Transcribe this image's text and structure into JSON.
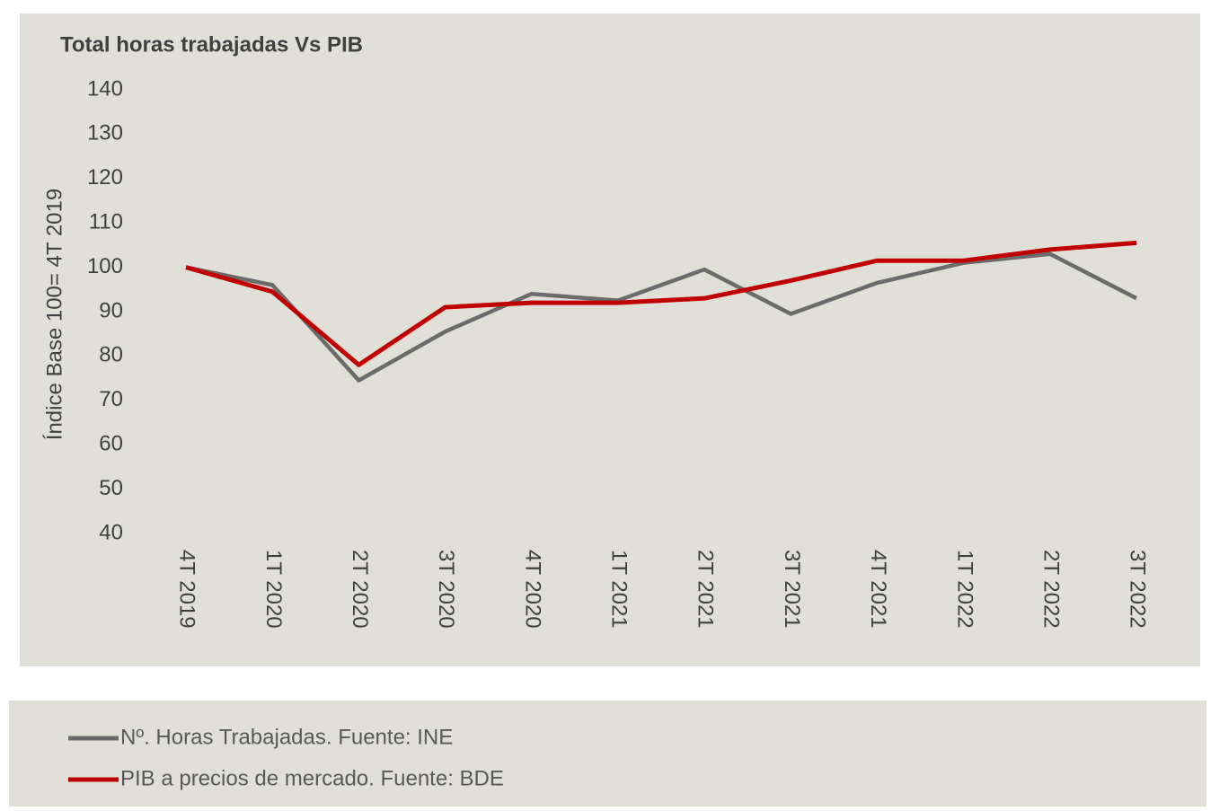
{
  "chart_data": {
    "type": "line",
    "title": "Total horas trabajadas Vs PIB",
    "y_label": "Índice Base 100= 4T 2019",
    "categories": [
      "4T 2019",
      "1T 2020",
      "2T 2020",
      "3T 2020",
      "4T 2020",
      "1T 2021",
      "2T 2021",
      "3T 2021",
      "4T 2021",
      "1T 2022",
      "2T 2022",
      "3T 2022"
    ],
    "series": [
      {
        "name": "Nº. Horas Trabajadas. Fuente: INE",
        "color": "#6b6b6b",
        "values": [
          100,
          96,
          74.5,
          85.5,
          94,
          92.5,
          99.5,
          89.5,
          96.5,
          101,
          103,
          93
        ]
      },
      {
        "name": "PIB a precios de mercado. Fuente: BDE",
        "color": "#c00000",
        "values": [
          100,
          94.5,
          78,
          91,
          92,
          92,
          93,
          97,
          101.5,
          101.5,
          104,
          105.5
        ]
      }
    ],
    "ylim": [
      40,
      140
    ],
    "yticks": [
      40,
      50,
      60,
      70,
      80,
      90,
      100,
      110,
      120,
      130,
      140
    ],
    "grid": false
  }
}
